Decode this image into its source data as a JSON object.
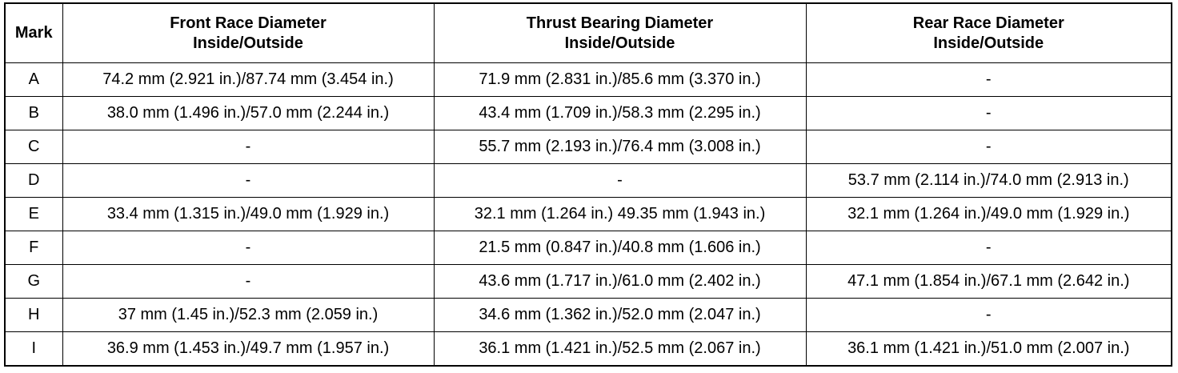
{
  "table": {
    "header": [
      "Mark",
      "Front Race Diameter\nInside/Outside",
      "Thrust Bearing Diameter\nInside/Outside",
      "Rear Race Diameter\nInside/Outside"
    ],
    "rows": [
      [
        "A",
        "74.2 mm (2.921 in.)/87.74 mm (3.454 in.)",
        "71.9 mm (2.831 in.)/85.6 mm (3.370 in.)",
        "-"
      ],
      [
        "B",
        "38.0 mm (1.496 in.)/57.0 mm (2.244 in.)",
        "43.4 mm (1.709 in.)/58.3 mm (2.295 in.)",
        "-"
      ],
      [
        "C",
        "-",
        "55.7 mm (2.193 in.)/76.4 mm (3.008 in.)",
        "-"
      ],
      [
        "D",
        "-",
        "-",
        "53.7 mm (2.114 in.)/74.0 mm (2.913 in.)"
      ],
      [
        "E",
        "33.4 mm (1.315 in.)/49.0 mm (1.929 in.)",
        "32.1 mm (1.264 in.) 49.35 mm (1.943 in.)",
        "32.1 mm (1.264 in.)/49.0 mm (1.929 in.)"
      ],
      [
        "F",
        "-",
        "21.5 mm (0.847 in.)/40.8 mm (1.606 in.)",
        "-"
      ],
      [
        "G",
        "-",
        "43.6 mm (1.717 in.)/61.0 mm (2.402 in.)",
        "47.1 mm (1.854 in.)/67.1 mm (2.642 in.)"
      ],
      [
        "H",
        "37 mm (1.45 in.)/52.3 mm (2.059 in.)",
        "34.6 mm (1.362 in.)/52.0 mm (2.047 in.)",
        "-"
      ],
      [
        "I",
        "36.9 mm (1.453 in.)/49.7 mm (1.957 in.)",
        "36.1 mm (1.421 in.)/52.5 mm (2.067 in.)",
        "36.1 mm (1.421 in.)/51.0 mm (2.007 in.)"
      ]
    ]
  }
}
